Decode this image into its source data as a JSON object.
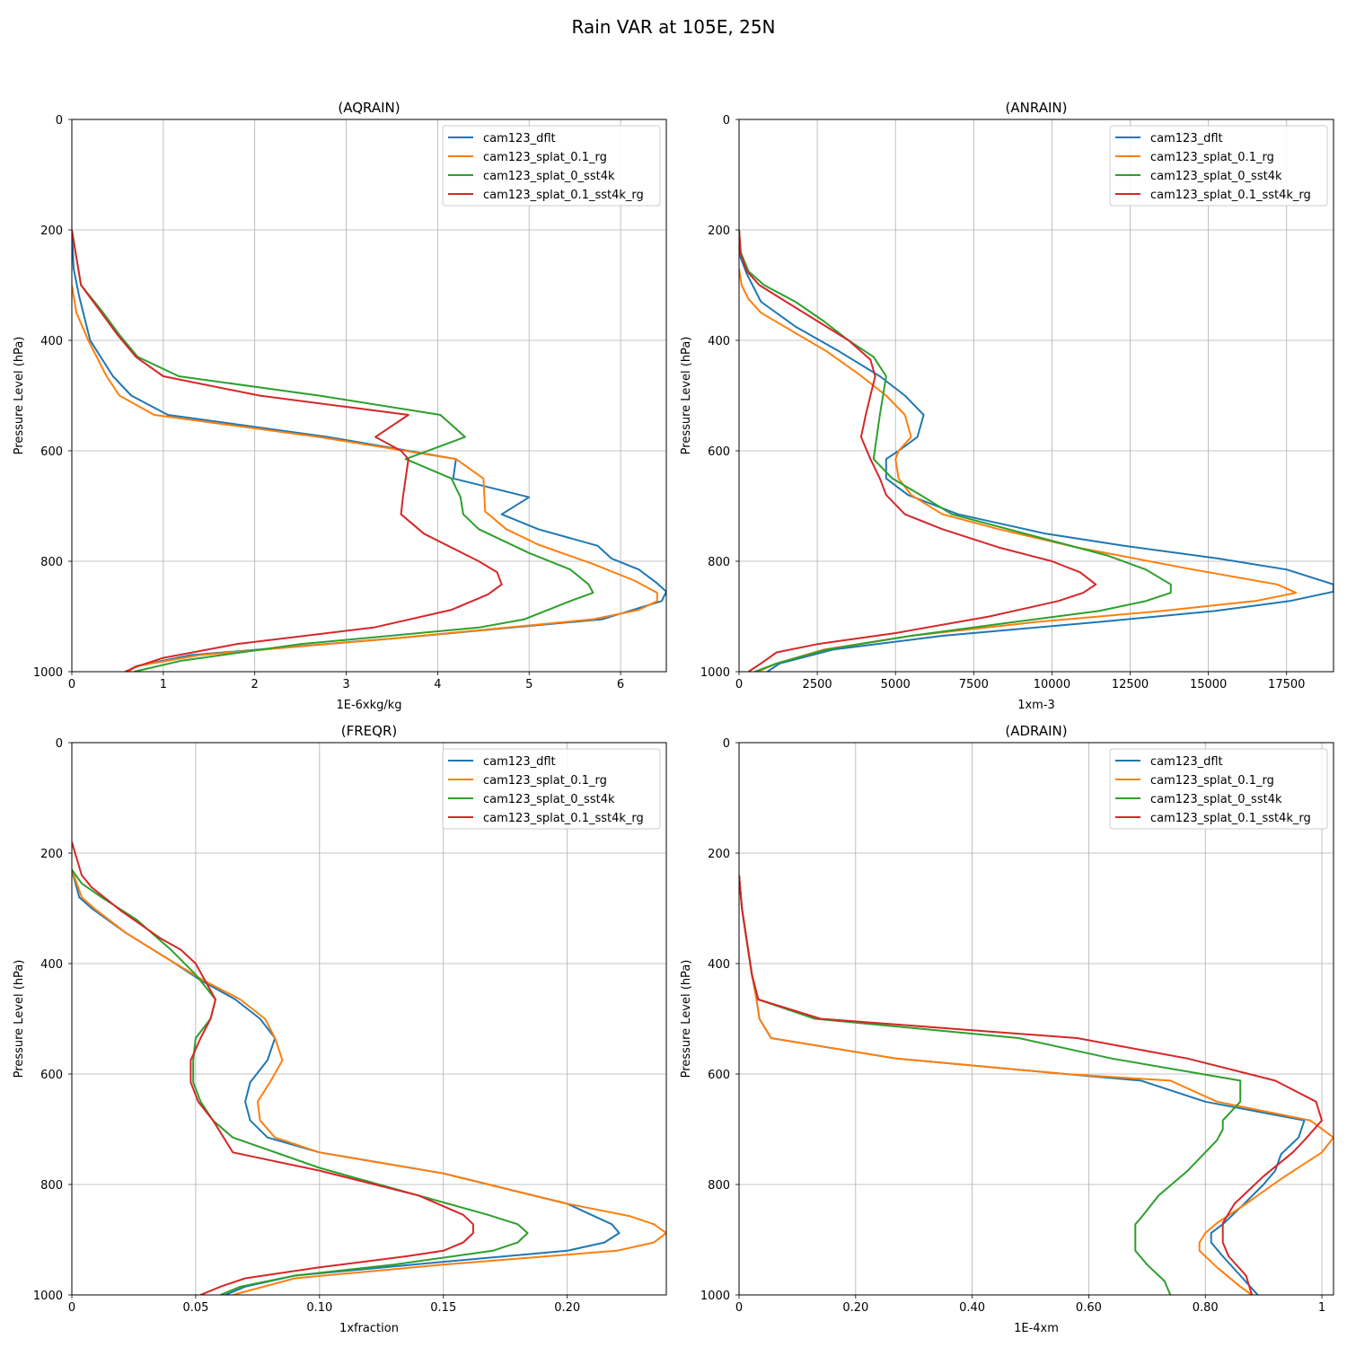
{
  "suptitle": "Rain VAR at 105E, 25N",
  "colors": {
    "cam123_dflt": "#1f77b4",
    "cam123_splat_0.1_rg": "#ff7f0e",
    "cam123_splat_0_sst4k": "#2ca02c",
    "cam123_splat_0.1_sst4k_rg": "#d62728"
  },
  "chart_data": [
    {
      "type": "line",
      "title": "(AQRAIN)",
      "xlabel": "1E-6xkg/kg",
      "ylabel": "Pressure Level (hPa)",
      "xlim": [
        0,
        6.5
      ],
      "ylim": [
        1000,
        0
      ],
      "xticks": [
        0,
        1,
        2,
        3,
        4,
        5,
        6
      ],
      "yticks": [
        0,
        200,
        400,
        600,
        800,
        1000
      ],
      "grid": true,
      "legend_loc": "upper right",
      "series": [
        {
          "name": "cam123_dflt",
          "x": [
            0,
            0.02,
            0.08,
            0.2,
            0.45,
            0.65,
            1.05,
            2.8,
            4.2,
            4.17,
            5.0,
            4.7,
            5.1,
            5.75,
            5.9,
            6.2,
            6.4,
            6.5,
            6.45,
            5.8,
            3.5,
            1.3,
            0.7,
            0.6
          ],
          "y": [
            200,
            270,
            320,
            400,
            465,
            500,
            535,
            575,
            615,
            650,
            684,
            715,
            742,
            772,
            795,
            815,
            840,
            855,
            872,
            905,
            940,
            970,
            990,
            1000
          ]
        },
        {
          "name": "cam123_splat_0.1_rg",
          "x": [
            0,
            0.05,
            0.18,
            0.38,
            0.52,
            0.9,
            2.7,
            4.2,
            4.5,
            4.52,
            4.75,
            5.1,
            5.7,
            6.15,
            6.4,
            6.4,
            6.2,
            5.7,
            3.5,
            1.4,
            0.7,
            0.62
          ],
          "y": [
            300,
            350,
            400,
            465,
            500,
            535,
            575,
            615,
            650,
            710,
            742,
            770,
            805,
            835,
            857,
            872,
            888,
            905,
            940,
            970,
            990,
            1000
          ]
        },
        {
          "name": "cam123_splat_0_sst4k",
          "x": [
            0,
            0.1,
            0.32,
            0.52,
            0.72,
            1.17,
            2.7,
            4.03,
            4.3,
            3.65,
            4.15,
            4.25,
            4.28,
            4.45,
            5.0,
            5.45,
            5.65,
            5.7,
            5.45,
            4.95,
            4.45,
            2.5,
            1.2,
            0.68
          ],
          "y": [
            200,
            300,
            345,
            390,
            430,
            465,
            500,
            535,
            575,
            615,
            650,
            684,
            715,
            742,
            785,
            815,
            842,
            857,
            872,
            905,
            920,
            950,
            980,
            1000
          ]
        },
        {
          "name": "cam123_splat_0.1_sst4k_rg",
          "x": [
            0,
            0.1,
            0.3,
            0.5,
            0.7,
            1.0,
            2.05,
            3.68,
            3.32,
            3.6,
            3.68,
            3.65,
            3.62,
            3.6,
            3.85,
            4.45,
            4.65,
            4.7,
            4.55,
            4.15,
            3.3,
            1.8,
            1.0,
            0.72,
            0.58
          ],
          "y": [
            200,
            300,
            345,
            390,
            430,
            465,
            500,
            535,
            575,
            600,
            615,
            650,
            684,
            715,
            750,
            800,
            820,
            842,
            860,
            888,
            920,
            950,
            975,
            990,
            1000
          ]
        }
      ]
    },
    {
      "type": "line",
      "title": "(ANRAIN)",
      "xlabel": "1xm-3",
      "ylabel": "Pressure Level (hPa)",
      "xlim": [
        0,
        19000
      ],
      "ylim": [
        1000,
        0
      ],
      "xticks": [
        0,
        2500,
        5000,
        7500,
        10000,
        12500,
        15000,
        17500
      ],
      "yticks": [
        0,
        200,
        400,
        600,
        800,
        1000
      ],
      "grid": true,
      "legend_loc": "upper right",
      "series": [
        {
          "name": "cam123_dflt",
          "x": [
            0,
            50,
            250,
            700,
            1800,
            3200,
            4500,
            5300,
            5900,
            5700,
            5100,
            4700,
            4700,
            5400,
            7000,
            9800,
            12300,
            15300,
            17500,
            19000,
            19000,
            17600,
            15200,
            11500,
            6500,
            3000,
            1300,
            900
          ],
          "y": [
            200,
            250,
            280,
            330,
            375,
            420,
            465,
            500,
            535,
            575,
            600,
            615,
            650,
            680,
            715,
            750,
            772,
            795,
            815,
            842,
            855,
            872,
            890,
            910,
            935,
            960,
            985,
            1000
          ]
        },
        {
          "name": "cam123_splat_0.1_rg",
          "x": [
            0,
            80,
            300,
            700,
            1600,
            2800,
            3800,
            4700,
            5300,
            5500,
            5100,
            5000,
            5100,
            5500,
            6500,
            8300,
            10800,
            14500,
            17200,
            17800,
            16500,
            13500,
            9500,
            5500,
            2700,
            1200,
            600
          ],
          "y": [
            270,
            300,
            325,
            350,
            380,
            420,
            460,
            500,
            535,
            575,
            600,
            615,
            650,
            680,
            715,
            742,
            775,
            815,
            842,
            857,
            872,
            890,
            910,
            935,
            960,
            985,
            1000
          ]
        },
        {
          "name": "cam123_splat_0_sst4k",
          "x": [
            0,
            50,
            300,
            800,
            1800,
            2700,
            3500,
            4300,
            4700,
            4600,
            4500,
            4400,
            4300,
            4900,
            5800,
            6800,
            9800,
            11800,
            13000,
            13800,
            13800,
            13000,
            11500,
            8800,
            5500,
            2800,
            1200,
            500
          ],
          "y": [
            200,
            240,
            275,
            300,
            330,
            365,
            400,
            430,
            465,
            500,
            535,
            575,
            615,
            650,
            680,
            715,
            760,
            790,
            815,
            842,
            857,
            872,
            890,
            910,
            935,
            960,
            985,
            1000
          ]
        },
        {
          "name": "cam123_splat_0.1_sst4k_rg",
          "x": [
            0,
            60,
            250,
            650,
            1500,
            2500,
            3500,
            4200,
            4350,
            4200,
            4050,
            3900,
            4200,
            4500,
            4700,
            5300,
            6500,
            8300,
            10000,
            10900,
            11400,
            11000,
            10200,
            8000,
            5000,
            2500,
            1200,
            700,
            300
          ],
          "y": [
            200,
            245,
            275,
            300,
            330,
            365,
            400,
            435,
            465,
            500,
            535,
            575,
            615,
            650,
            680,
            715,
            742,
            775,
            800,
            820,
            842,
            857,
            872,
            900,
            930,
            950,
            965,
            985,
            1000
          ]
        }
      ]
    },
    {
      "type": "line",
      "title": "(FREQR)",
      "xlabel": "1xfraction",
      "ylabel": "Pressure Level (hPa)",
      "xlim": [
        0,
        0.24
      ],
      "ylim": [
        1000,
        0
      ],
      "xticks": [
        0,
        0.05,
        0.1,
        0.15,
        0.2
      ],
      "yticks": [
        0,
        200,
        400,
        600,
        800,
        1000
      ],
      "grid": true,
      "legend_loc": "upper right",
      "series": [
        {
          "name": "cam123_dflt",
          "x": [
            0,
            0.003,
            0.008,
            0.022,
            0.04,
            0.052,
            0.066,
            0.076,
            0.082,
            0.079,
            0.072,
            0.07,
            0.072,
            0.079,
            0.1,
            0.15,
            0.2,
            0.218,
            0.221,
            0.215,
            0.2,
            0.15,
            0.09,
            0.07,
            0.062
          ],
          "y": [
            230,
            280,
            300,
            345,
            395,
            430,
            465,
            500,
            535,
            575,
            615,
            650,
            684,
            715,
            742,
            780,
            835,
            872,
            888,
            905,
            920,
            940,
            965,
            985,
            1000
          ]
        },
        {
          "name": "cam123_splat_0.1_rg",
          "x": [
            0,
            0.004,
            0.009,
            0.022,
            0.04,
            0.053,
            0.068,
            0.078,
            0.082,
            0.085,
            0.08,
            0.075,
            0.076,
            0.082,
            0.1,
            0.15,
            0.2,
            0.225,
            0.235,
            0.24,
            0.235,
            0.22,
            0.15,
            0.09,
            0.065
          ],
          "y": [
            230,
            280,
            300,
            345,
            395,
            430,
            465,
            500,
            535,
            575,
            615,
            650,
            684,
            715,
            742,
            780,
            835,
            857,
            872,
            888,
            905,
            920,
            945,
            970,
            1000
          ]
        },
        {
          "name": "cam123_splat_0_sst4k",
          "x": [
            0,
            0.004,
            0.012,
            0.026,
            0.04,
            0.05,
            0.058,
            0.056,
            0.05,
            0.049,
            0.049,
            0.052,
            0.057,
            0.065,
            0.1,
            0.14,
            0.168,
            0.18,
            0.184,
            0.18,
            0.17,
            0.13,
            0.09,
            0.068,
            0.06
          ],
          "y": [
            230,
            255,
            280,
            320,
            375,
            420,
            465,
            500,
            535,
            575,
            615,
            650,
            684,
            715,
            770,
            820,
            855,
            872,
            888,
            905,
            920,
            945,
            965,
            985,
            1000
          ]
        },
        {
          "name": "cam123_splat_0.1_sst4k_rg",
          "x": [
            0,
            0.002,
            0.004,
            0.008,
            0.02,
            0.036,
            0.044,
            0.05,
            0.058,
            0.056,
            0.052,
            0.048,
            0.048,
            0.051,
            0.057,
            0.065,
            0.1,
            0.14,
            0.158,
            0.162,
            0.162,
            0.158,
            0.15,
            0.135,
            0.1,
            0.07,
            0.06,
            0.052
          ],
          "y": [
            180,
            210,
            240,
            262,
            305,
            355,
            375,
            400,
            465,
            500,
            535,
            575,
            615,
            650,
            684,
            742,
            775,
            820,
            855,
            872,
            888,
            905,
            920,
            930,
            950,
            970,
            985,
            1000
          ]
        }
      ]
    },
    {
      "type": "line",
      "title": "(ADRAIN)",
      "xlabel": "1E-4xm",
      "ylabel": "Pressure Level (hPa)",
      "xlim": [
        0,
        1.02
      ],
      "ylim": [
        1000,
        0
      ],
      "xticks": [
        0,
        0.2,
        0.4,
        0.6,
        0.8,
        1.0
      ],
      "yticks": [
        0,
        200,
        400,
        600,
        800,
        1000
      ],
      "grid": true,
      "legend_loc": "upper right",
      "series": [
        {
          "name": "cam123_dflt",
          "x": [
            0,
            0.005,
            0.012,
            0.022,
            0.03,
            0.035,
            0.055,
            0.27,
            0.56,
            0.69,
            0.8,
            0.97,
            0.96,
            0.93,
            0.92,
            0.9,
            0.86,
            0.83,
            0.81,
            0.81,
            0.83,
            0.86,
            0.89
          ],
          "y": [
            240,
            300,
            350,
            420,
            465,
            500,
            535,
            572,
            600,
            612,
            650,
            684,
            715,
            745,
            775,
            800,
            842,
            872,
            888,
            905,
            930,
            965,
            1000
          ]
        },
        {
          "name": "cam123_splat_0.1_rg",
          "x": [
            0,
            0.005,
            0.012,
            0.022,
            0.03,
            0.035,
            0.055,
            0.27,
            0.56,
            0.74,
            0.82,
            0.98,
            1.02,
            1.0,
            0.93,
            0.87,
            0.82,
            0.8,
            0.79,
            0.79,
            0.82,
            0.86,
            0.88
          ],
          "y": [
            240,
            300,
            350,
            420,
            465,
            500,
            535,
            572,
            600,
            612,
            650,
            684,
            715,
            742,
            790,
            835,
            870,
            888,
            905,
            920,
            950,
            985,
            1000
          ]
        },
        {
          "name": "cam123_splat_0_sst4k",
          "x": [
            0,
            0.005,
            0.012,
            0.022,
            0.033,
            0.13,
            0.48,
            0.64,
            0.86,
            0.86,
            0.83,
            0.83,
            0.82,
            0.8,
            0.77,
            0.72,
            0.69,
            0.68,
            0.68,
            0.68,
            0.7,
            0.73,
            0.74
          ],
          "y": [
            240,
            300,
            350,
            420,
            465,
            500,
            535,
            572,
            612,
            650,
            684,
            700,
            720,
            742,
            775,
            820,
            860,
            872,
            905,
            920,
            945,
            975,
            1000
          ]
        },
        {
          "name": "cam123_splat_0.1_sst4k_rg",
          "x": [
            0,
            0.005,
            0.012,
            0.022,
            0.033,
            0.14,
            0.58,
            0.77,
            0.92,
            0.99,
            1.0,
            0.97,
            0.95,
            0.9,
            0.85,
            0.83,
            0.83,
            0.84,
            0.87,
            0.88
          ],
          "y": [
            240,
            300,
            350,
            420,
            465,
            500,
            535,
            572,
            612,
            650,
            684,
            720,
            742,
            785,
            835,
            870,
            905,
            930,
            965,
            1000
          ]
        }
      ]
    }
  ]
}
